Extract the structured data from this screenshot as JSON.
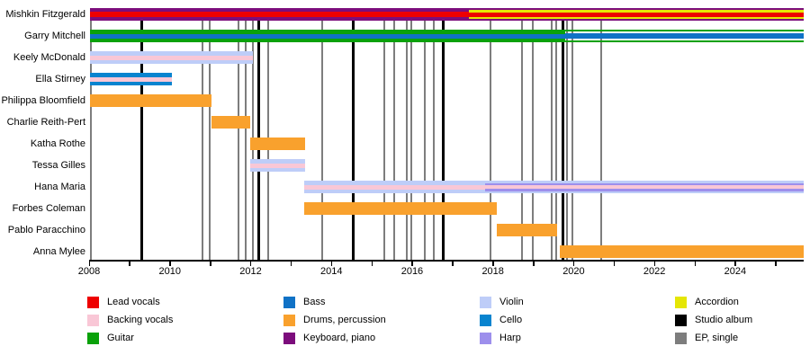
{
  "chart_data": {
    "type": "bar",
    "variant": "band-members-gantt-timeline",
    "title": "",
    "axis": {
      "start": 2008,
      "end": 2025.7,
      "tick_every_years": 1,
      "label_every_years": 2,
      "tick_labels": [
        "2008",
        "2010",
        "2012",
        "2014",
        "2016",
        "2018",
        "2020",
        "2022",
        "2024"
      ]
    },
    "colors": {
      "lead_vocals": "#ee0000",
      "backing_vocals": "#f9c7d6",
      "guitar": "#0aa10a",
      "bass": "#1072c6",
      "drums": "#f9a12d",
      "keyboard": "#7c0d7c",
      "violin": "#becdf8",
      "cello": "#0984cf",
      "harp": "#9d8fec",
      "accordion": "#e5e604",
      "studio_album": "#000000",
      "ep_single": "#7d7d7d"
    },
    "members": [
      {
        "name": "Mishkin Fitzgerald",
        "segments": [
          {
            "start": 2008.02,
            "end": 2017.4,
            "roles": [
              "keyboard",
              "lead_vocals"
            ],
            "stripes": [
              {
                "role": "keyboard",
                "h": 4
              },
              {
                "role": "lead_vocals",
                "h": 6
              },
              {
                "role": "keyboard",
                "h": 4
              }
            ]
          },
          {
            "start": 2017.4,
            "end": 2025.7,
            "roles": [
              "keyboard",
              "accordion",
              "lead_vocals"
            ],
            "stripes": [
              {
                "role": "keyboard",
                "h": 2
              },
              {
                "role": "accordion",
                "h": 2.5
              },
              {
                "role": "lead_vocals",
                "h": 5
              },
              {
                "role": "accordion",
                "h": 2.5
              },
              {
                "role": "keyboard",
                "h": 2
              }
            ]
          }
        ]
      },
      {
        "name": "Garry Mitchell",
        "segments": [
          {
            "start": 2008.02,
            "end": 2019.8,
            "roles": [
              "guitar",
              "bass"
            ],
            "stripes": [
              {
                "role": "guitar",
                "h": 4.5
              },
              {
                "role": "bass",
                "h": 5
              },
              {
                "role": "guitar",
                "h": 4.5
              }
            ]
          },
          {
            "start": 2019.8,
            "end": 2025.7,
            "roles": [
              "guitar",
              "bass"
            ],
            "stripes": [
              {
                "role": "guitar",
                "h": 2
              },
              {
                "role": "gap",
                "h": 2
              },
              {
                "role": "bass",
                "h": 6
              },
              {
                "role": "gap",
                "h": 2
              },
              {
                "role": "guitar",
                "h": 2
              }
            ]
          }
        ]
      },
      {
        "name": "Keely McDonald",
        "segments": [
          {
            "start": 2008.02,
            "end": 2012.05,
            "roles": [
              "violin",
              "backing_vocals"
            ],
            "stripes": [
              {
                "role": "violin",
                "h": 4.5
              },
              {
                "role": "backing_vocals",
                "h": 5
              },
              {
                "role": "violin",
                "h": 4.5
              }
            ]
          }
        ]
      },
      {
        "name": "Ella Stirney",
        "segments": [
          {
            "start": 2008.02,
            "end": 2010.05,
            "roles": [
              "cello",
              "backing_vocals"
            ],
            "stripes": [
              {
                "role": "cello",
                "h": 4.5
              },
              {
                "role": "backing_vocals",
                "h": 5
              },
              {
                "role": "cello",
                "h": 4.5
              }
            ]
          }
        ]
      },
      {
        "name": "Philippa Bloomfield",
        "segments": [
          {
            "start": 2008.02,
            "end": 2011.03,
            "roles": [
              "drums"
            ],
            "stripes": [
              {
                "role": "drums",
                "h": 14
              }
            ]
          }
        ]
      },
      {
        "name": "Charlie Reith-Pert",
        "segments": [
          {
            "start": 2011.03,
            "end": 2012.0,
            "roles": [
              "drums"
            ],
            "stripes": [
              {
                "role": "drums",
                "h": 14
              }
            ]
          }
        ]
      },
      {
        "name": "Katha Rothe",
        "segments": [
          {
            "start": 2012.0,
            "end": 2013.35,
            "roles": [
              "drums"
            ],
            "stripes": [
              {
                "role": "drums",
                "h": 14
              }
            ]
          }
        ]
      },
      {
        "name": "Tessa Gilles",
        "segments": [
          {
            "start": 2012.0,
            "end": 2013.35,
            "roles": [
              "violin",
              "backing_vocals"
            ],
            "stripes": [
              {
                "role": "violin",
                "h": 4.5
              },
              {
                "role": "backing_vocals",
                "h": 5
              },
              {
                "role": "violin",
                "h": 4.5
              }
            ]
          }
        ]
      },
      {
        "name": "Hana Maria",
        "segments": [
          {
            "start": 2013.33,
            "end": 2017.8,
            "roles": [
              "violin",
              "backing_vocals"
            ],
            "stripes": [
              {
                "role": "violin",
                "h": 4.5
              },
              {
                "role": "backing_vocals",
                "h": 5
              },
              {
                "role": "violin",
                "h": 4.5
              }
            ]
          },
          {
            "start": 2017.8,
            "end": 2025.7,
            "roles": [
              "violin",
              "harp",
              "backing_vocals"
            ],
            "stripes": [
              {
                "role": "violin",
                "h": 2.5
              },
              {
                "role": "harp",
                "h": 2.5
              },
              {
                "role": "backing_vocals",
                "h": 4
              },
              {
                "role": "harp",
                "h": 2.5
              },
              {
                "role": "violin",
                "h": 2.5
              }
            ]
          }
        ]
      },
      {
        "name": "Forbes Coleman",
        "segments": [
          {
            "start": 2013.33,
            "end": 2018.1,
            "roles": [
              "drums"
            ],
            "stripes": [
              {
                "role": "drums",
                "h": 14
              }
            ]
          }
        ]
      },
      {
        "name": "Pablo Paracchino",
        "segments": [
          {
            "start": 2018.1,
            "end": 2019.6,
            "roles": [
              "drums"
            ],
            "stripes": [
              {
                "role": "drums",
                "h": 14
              }
            ]
          }
        ]
      },
      {
        "name": "Anna Mylee",
        "segments": [
          {
            "start": 2019.65,
            "end": 2025.7,
            "roles": [
              "drums"
            ],
            "stripes": [
              {
                "role": "drums",
                "h": 14
              }
            ]
          }
        ]
      }
    ],
    "releases": [
      {
        "year": 2008.05,
        "type": "ep_single"
      },
      {
        "year": 2009.3,
        "type": "studio_album"
      },
      {
        "year": 2010.8,
        "type": "ep_single"
      },
      {
        "year": 2010.98,
        "type": "ep_single"
      },
      {
        "year": 2011.7,
        "type": "ep_single"
      },
      {
        "year": 2011.88,
        "type": "ep_single"
      },
      {
        "year": 2012.05,
        "type": "ep_single"
      },
      {
        "year": 2012.2,
        "type": "studio_album"
      },
      {
        "year": 2012.43,
        "type": "ep_single"
      },
      {
        "year": 2013.77,
        "type": "ep_single"
      },
      {
        "year": 2014.55,
        "type": "studio_album"
      },
      {
        "year": 2015.31,
        "type": "ep_single"
      },
      {
        "year": 2015.55,
        "type": "ep_single"
      },
      {
        "year": 2015.87,
        "type": "ep_single"
      },
      {
        "year": 2015.98,
        "type": "ep_single"
      },
      {
        "year": 2016.31,
        "type": "ep_single"
      },
      {
        "year": 2016.53,
        "type": "ep_single"
      },
      {
        "year": 2016.78,
        "type": "studio_album"
      },
      {
        "year": 2017.94,
        "type": "ep_single"
      },
      {
        "year": 2018.72,
        "type": "ep_single"
      },
      {
        "year": 2018.99,
        "type": "ep_single"
      },
      {
        "year": 2019.45,
        "type": "ep_single"
      },
      {
        "year": 2019.57,
        "type": "ep_single"
      },
      {
        "year": 2019.73,
        "type": "studio_album"
      },
      {
        "year": 2019.83,
        "type": "ep_single"
      },
      {
        "year": 2019.97,
        "type": "ep_single"
      },
      {
        "year": 2020.68,
        "type": "ep_single"
      }
    ],
    "legend": {
      "columns": [
        {
          "items": [
            {
              "key": "lead_vocals",
              "label": "Lead vocals"
            },
            {
              "key": "backing_vocals",
              "label": "Backing vocals"
            },
            {
              "key": "guitar",
              "label": "Guitar"
            }
          ]
        },
        {
          "items": [
            {
              "key": "bass",
              "label": "Bass"
            },
            {
              "key": "drums",
              "label": "Drums, percussion"
            },
            {
              "key": "keyboard",
              "label": "Keyboard, piano"
            }
          ]
        },
        {
          "items": [
            {
              "key": "violin",
              "label": "Violin"
            },
            {
              "key": "cello",
              "label": "Cello"
            },
            {
              "key": "harp",
              "label": "Harp"
            }
          ]
        },
        {
          "items": [
            {
              "key": "accordion",
              "label": "Accordion"
            },
            {
              "key": "studio_album",
              "label": "Studio album"
            },
            {
              "key": "ep_single",
              "label": "EP, single"
            }
          ]
        }
      ]
    }
  }
}
